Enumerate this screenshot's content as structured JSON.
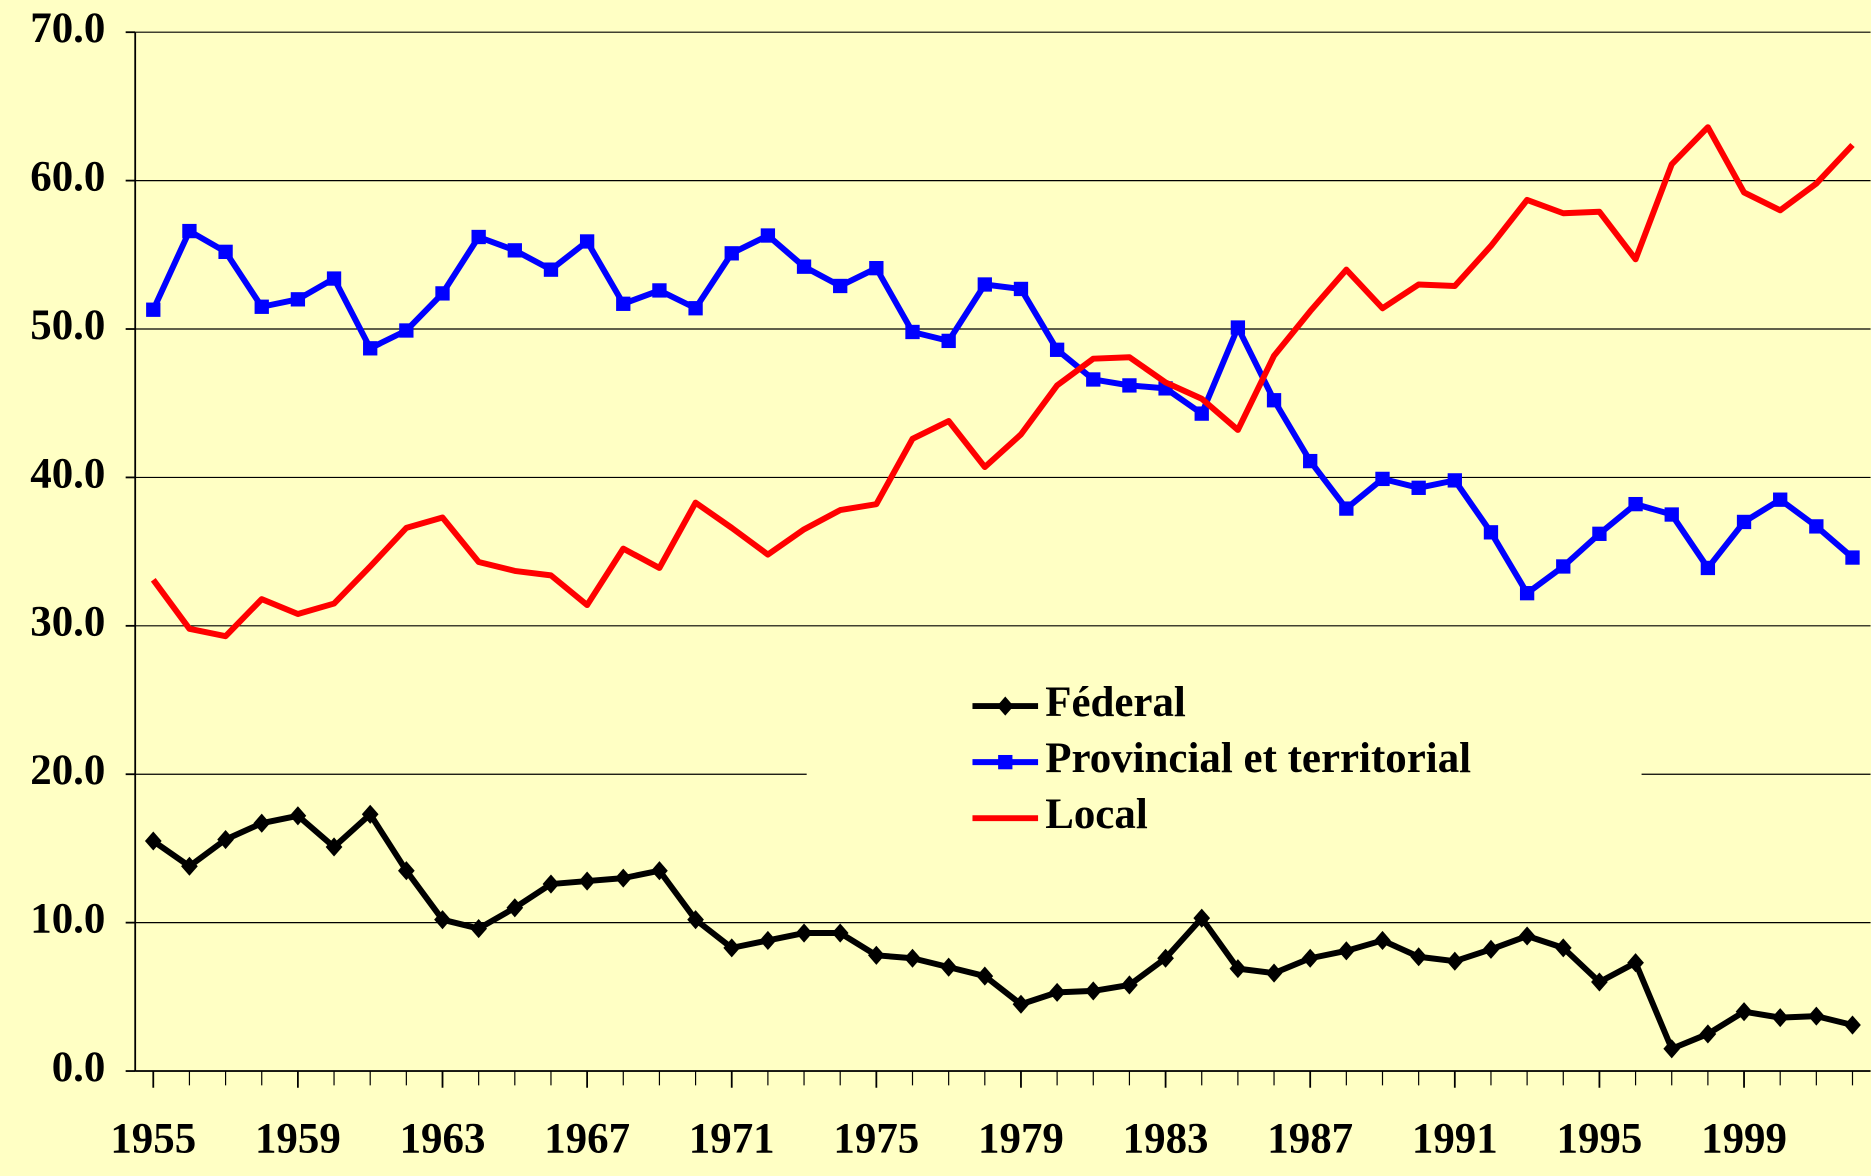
{
  "chart_data": {
    "type": "line",
    "x": [
      1955,
      1956,
      1957,
      1958,
      1959,
      1960,
      1961,
      1962,
      1963,
      1964,
      1965,
      1966,
      1967,
      1968,
      1969,
      1970,
      1971,
      1972,
      1973,
      1974,
      1975,
      1976,
      1977,
      1978,
      1979,
      1980,
      1981,
      1982,
      1983,
      1984,
      1985,
      1986,
      1987,
      1988,
      1989,
      1990,
      1991,
      1992,
      1993,
      1994,
      1995,
      1996,
      1997,
      1998,
      1999,
      2000,
      2001,
      2002
    ],
    "series": [
      {
        "name": "Féderal",
        "color": "#000000",
        "marker": "diamond",
        "values": [
          15.5,
          13.8,
          15.6,
          16.7,
          17.2,
          15.1,
          17.3,
          13.5,
          10.2,
          9.6,
          11.0,
          12.6,
          12.8,
          13.0,
          13.5,
          10.2,
          8.3,
          8.8,
          9.3,
          9.3,
          7.8,
          7.6,
          7.0,
          6.4,
          4.5,
          5.3,
          5.4,
          5.8,
          7.6,
          10.3,
          6.9,
          6.6,
          7.6,
          8.1,
          8.8,
          7.7,
          7.4,
          8.2,
          9.1,
          8.3,
          6.0,
          7.3,
          1.5,
          2.5,
          4.0,
          3.6,
          3.7,
          3.1
        ]
      },
      {
        "name": "Provincial et territorial",
        "color": "#0000ff",
        "marker": "square",
        "values": [
          51.3,
          56.6,
          55.2,
          51.5,
          52.0,
          53.4,
          48.7,
          49.9,
          52.4,
          56.2,
          55.3,
          54.0,
          55.9,
          51.7,
          52.6,
          51.4,
          55.1,
          56.3,
          54.2,
          52.9,
          54.1,
          49.8,
          49.2,
          53.0,
          52.7,
          48.6,
          46.6,
          46.2,
          46.0,
          44.3,
          50.1,
          45.2,
          41.1,
          37.9,
          39.9,
          39.3,
          39.8,
          36.3,
          32.2,
          34.0,
          36.2,
          38.2,
          37.5,
          33.9,
          37.0,
          38.5,
          36.7,
          34.6
        ]
      },
      {
        "name": "Local",
        "color": "#ff0000",
        "marker": "none",
        "values": [
          33.1,
          29.8,
          29.3,
          31.8,
          30.8,
          31.5,
          34.0,
          36.6,
          37.3,
          34.3,
          33.7,
          33.4,
          31.4,
          35.2,
          33.9,
          38.3,
          36.6,
          34.8,
          36.5,
          37.8,
          38.2,
          42.6,
          43.8,
          40.7,
          42.9,
          46.2,
          48.0,
          48.1,
          46.4,
          45.3,
          43.2,
          48.2,
          51.2,
          54.0,
          51.4,
          53.0,
          52.9,
          55.6,
          58.7,
          57.8,
          57.9,
          54.7,
          61.1,
          63.6,
          59.2,
          58.0,
          59.8,
          62.4
        ]
      }
    ],
    "xlim": [
      1954.5,
      2002.5
    ],
    "xticks": [
      1955,
      1959,
      1963,
      1967,
      1971,
      1975,
      1979,
      1983,
      1987,
      1991,
      1995,
      1999
    ],
    "ylim": [
      0,
      70
    ],
    "yticks": [
      {
        "value": 0,
        "label": "0.0"
      },
      {
        "value": 10,
        "label": "10.0"
      },
      {
        "value": 20,
        "label": "20.0"
      },
      {
        "value": 30,
        "label": "30.0"
      },
      {
        "value": 40,
        "label": "40.0"
      },
      {
        "value": 50,
        "label": "50.0"
      },
      {
        "value": 60,
        "label": "60.0"
      },
      {
        "value": 70,
        "label": "70.0"
      }
    ],
    "grid": true,
    "legend": "center"
  }
}
